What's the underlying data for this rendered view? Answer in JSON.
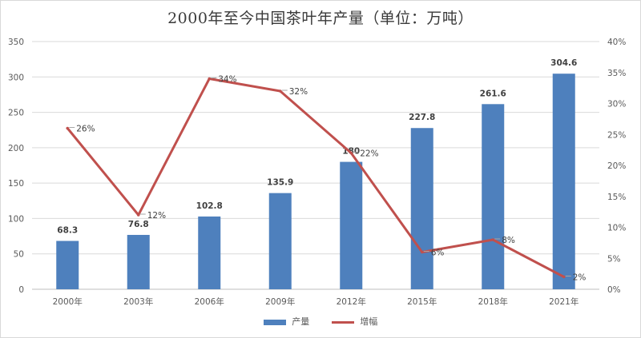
{
  "chart_data": {
    "type": "bar",
    "title": "2000年至今中国茶叶年产量（单位：万吨）",
    "categories": [
      "2000年",
      "2003年",
      "2006年",
      "2009年",
      "2012年",
      "2015年",
      "2018年",
      "2021年"
    ],
    "series": [
      {
        "name": "产量",
        "type": "bar",
        "axis": "left",
        "color": "#4e80bd",
        "values": [
          68.3,
          76.8,
          102.8,
          135.9,
          180,
          227.8,
          261.6,
          304.6
        ],
        "labels": [
          "68.3",
          "76.8",
          "102.8",
          "135.9",
          "180",
          "227.8",
          "261.6",
          "304.6"
        ]
      },
      {
        "name": "增幅",
        "type": "line",
        "axis": "right",
        "color": "#c0504d",
        "values": [
          26,
          12,
          34,
          32,
          22,
          6,
          8,
          2
        ],
        "labels": [
          "26%",
          "12%",
          "34%",
          "32%",
          "22%",
          "6%",
          "8%",
          "2%"
        ]
      }
    ],
    "y_left": {
      "min": 0,
      "max": 350,
      "step": 50,
      "ticks": [
        "0",
        "50",
        "100",
        "150",
        "200",
        "250",
        "300",
        "350"
      ]
    },
    "y_right": {
      "min": 0,
      "max": 40,
      "step": 5,
      "ticks": [
        "0%",
        "5%",
        "10%",
        "15%",
        "20%",
        "25%",
        "30%",
        "35%",
        "40%"
      ]
    },
    "grid": true,
    "legend_position": "bottom"
  }
}
